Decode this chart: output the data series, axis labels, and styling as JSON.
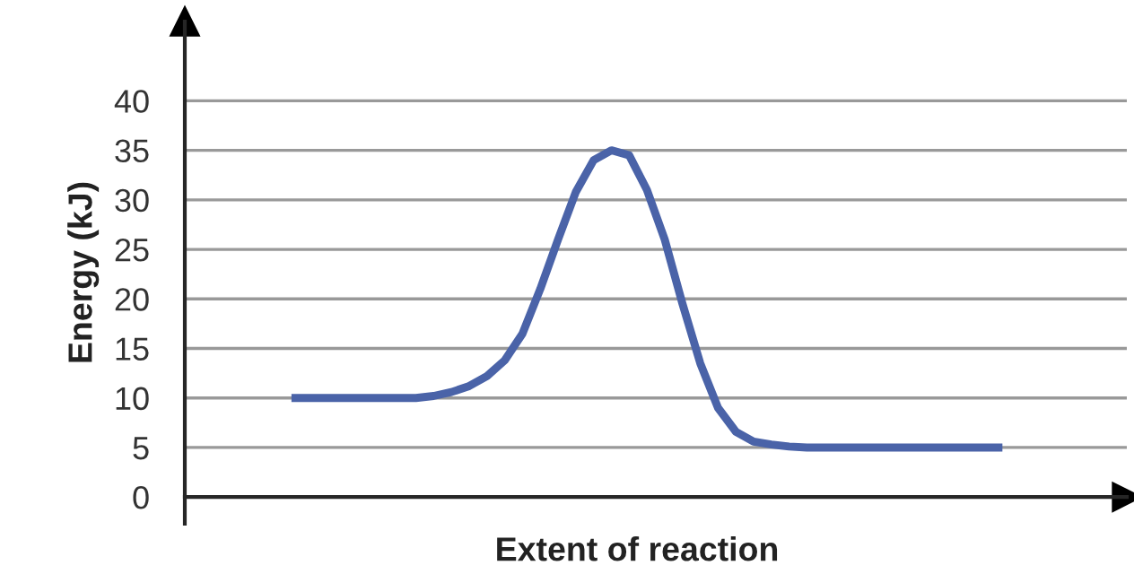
{
  "chart_data": {
    "type": "line",
    "xlabel": "Extent of reaction",
    "ylabel": "Energy (kJ)",
    "categories": [
      null,
      null,
      null,
      null,
      null,
      null,
      null,
      null,
      null,
      null,
      null,
      null,
      null,
      null,
      null,
      null,
      null,
      null,
      null,
      null,
      null,
      null,
      null,
      null,
      null,
      null,
      null,
      null,
      null,
      null,
      null,
      null,
      null,
      null,
      null,
      null,
      null,
      null,
      null,
      null,
      null
    ],
    "series": [
      {
        "color": "#4a63a8",
        "values": [
          10,
          10,
          10,
          10,
          10,
          10,
          10,
          10,
          10.2,
          10.6,
          11.2,
          12.2,
          13.8,
          16.5,
          21,
          26,
          30.8,
          34,
          35,
          34.5,
          31,
          26,
          19.5,
          13.5,
          9,
          6.6,
          5.6,
          5.3,
          5.1,
          5,
          5,
          5,
          5,
          5,
          5,
          5,
          5,
          5,
          5,
          5,
          5
        ]
      }
    ],
    "ylim": [
      -2.7,
      48
    ],
    "yticks": [
      0,
      5,
      10,
      15,
      20,
      25,
      30,
      35,
      40
    ],
    "grid": "y",
    "legend": false,
    "marker": "none",
    "line_style": "solid"
  }
}
